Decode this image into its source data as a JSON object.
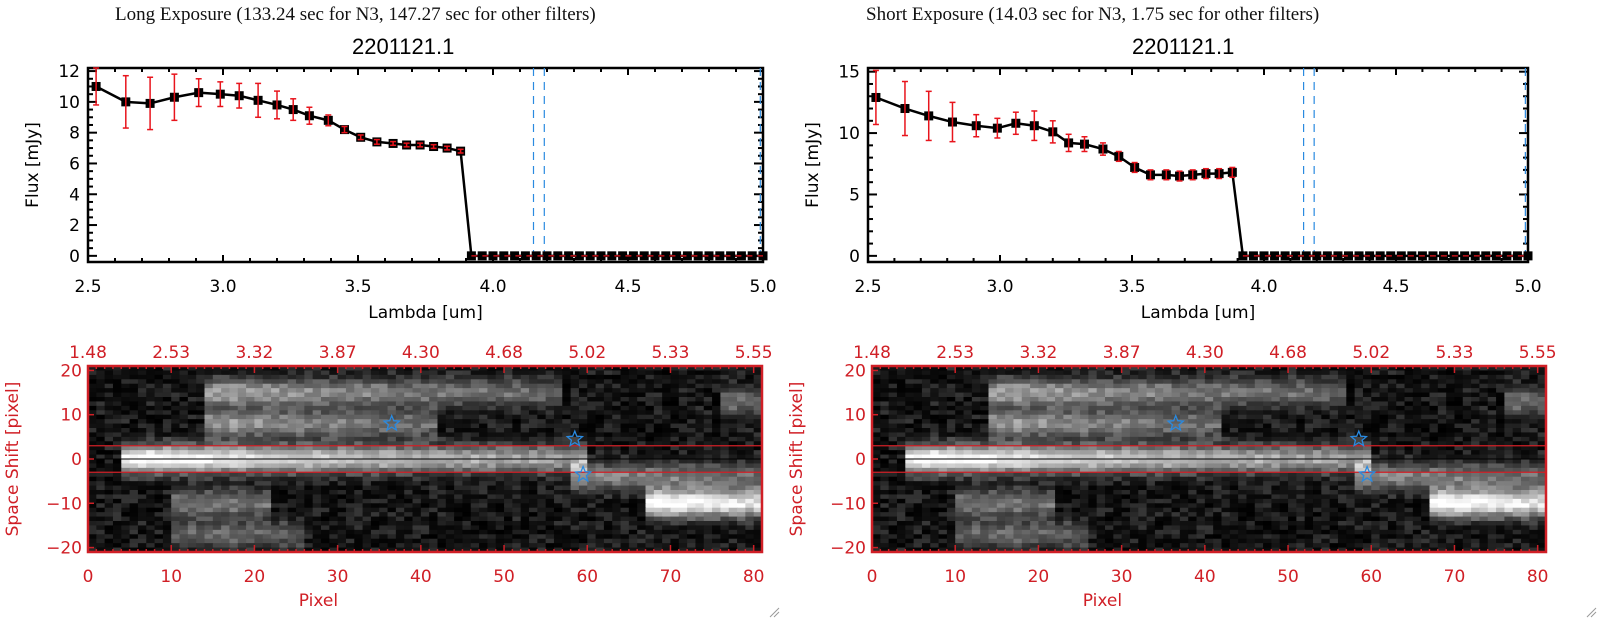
{
  "panels": [
    {
      "exposure_title": "Long Exposure (133.24 sec for N3, 147.27 sec for other filters)",
      "plot_title": "2201121.1"
    },
    {
      "exposure_title": "Short Exposure (14.03 sec for N3, 1.75 sec for other filters)",
      "plot_title": "2201121.1"
    }
  ],
  "colors": {
    "line": "#000000",
    "errorbar": "#e8141c",
    "image_axis": "#d01f26",
    "filter_line": "#2a8ae0",
    "star": "#2a8ae0",
    "zero_line": "#e8141c"
  },
  "chart_data": [
    {
      "type": "line",
      "title": "2201121.1",
      "xlabel": "Lambda [um]",
      "ylabel": "Flux [mJy]",
      "xlim": [
        2.5,
        5.0
      ],
      "ylim": [
        -0.4,
        12.2
      ],
      "xticks": [
        "2.5",
        "3.0",
        "3.5",
        "4.0",
        "4.5",
        "5.0"
      ],
      "yticks": [
        "0",
        "2",
        "4",
        "6",
        "8",
        "10",
        "12"
      ],
      "ytick_values": [
        0,
        2,
        4,
        6,
        8,
        10,
        12
      ],
      "series": [
        {
          "name": "flux",
          "x": [
            2.53,
            2.64,
            2.73,
            2.82,
            2.91,
            2.99,
            3.06,
            3.13,
            3.2,
            3.26,
            3.32,
            3.39,
            3.45,
            3.51,
            3.57,
            3.63,
            3.68,
            3.73,
            3.78,
            3.83,
            3.88,
            3.92,
            3.96,
            4.0,
            4.04,
            4.08,
            4.12,
            4.16,
            4.2,
            4.24,
            4.28,
            4.32,
            4.36,
            4.4,
            4.44,
            4.48,
            4.52,
            4.56,
            4.6,
            4.64,
            4.68,
            4.72,
            4.76,
            4.8,
            4.84,
            4.88,
            4.92,
            4.96,
            5.0
          ],
          "y": [
            11.0,
            10.0,
            9.9,
            10.3,
            10.6,
            10.5,
            10.4,
            10.1,
            9.8,
            9.5,
            9.1,
            8.8,
            8.2,
            7.7,
            7.4,
            7.3,
            7.2,
            7.2,
            7.1,
            7.0,
            6.8,
            0,
            0,
            0,
            0,
            0,
            0,
            0,
            0,
            0,
            0,
            0,
            0,
            0,
            0,
            0,
            0,
            0,
            0,
            0,
            0,
            0,
            0,
            0,
            0,
            0,
            0,
            0,
            0
          ],
          "yerr": [
            1.2,
            1.7,
            1.7,
            1.5,
            0.9,
            0.8,
            0.8,
            1.1,
            0.9,
            0.7,
            0.55,
            0.35,
            0.2,
            0.15,
            0.15,
            0.12,
            0.12,
            0.12,
            0.12,
            0.12,
            0.12,
            0,
            0,
            0,
            0,
            0,
            0,
            0,
            0,
            0,
            0,
            0,
            0,
            0,
            0,
            0,
            0,
            0,
            0,
            0,
            0,
            0,
            0,
            0,
            0,
            0,
            0,
            0,
            0
          ]
        }
      ],
      "vlines_dashed": [
        4.15,
        4.19,
        4.99
      ],
      "hline_dashed": 0
    },
    {
      "type": "line",
      "title": "2201121.1",
      "xlabel": "Lambda [um]",
      "ylabel": "Flux [mJy]",
      "xlim": [
        2.5,
        5.0
      ],
      "ylim": [
        -0.5,
        15.3
      ],
      "xticks": [
        "2.5",
        "3.0",
        "3.5",
        "4.0",
        "4.5",
        "5.0"
      ],
      "yticks": [
        "0",
        "5",
        "10",
        "15"
      ],
      "ytick_values": [
        0,
        5,
        10,
        15
      ],
      "series": [
        {
          "name": "flux",
          "x": [
            2.53,
            2.64,
            2.73,
            2.82,
            2.91,
            2.99,
            3.06,
            3.13,
            3.2,
            3.26,
            3.32,
            3.39,
            3.45,
            3.51,
            3.57,
            3.63,
            3.68,
            3.73,
            3.78,
            3.83,
            3.88,
            3.92,
            3.96,
            4.0,
            4.04,
            4.08,
            4.12,
            4.16,
            4.2,
            4.24,
            4.28,
            4.32,
            4.36,
            4.4,
            4.44,
            4.48,
            4.52,
            4.56,
            4.6,
            4.64,
            4.68,
            4.72,
            4.76,
            4.8,
            4.84,
            4.88,
            4.92,
            4.96,
            5.0
          ],
          "y": [
            12.9,
            12.0,
            11.4,
            10.9,
            10.6,
            10.4,
            10.8,
            10.6,
            10.1,
            9.2,
            9.1,
            8.7,
            8.1,
            7.2,
            6.6,
            6.6,
            6.5,
            6.6,
            6.7,
            6.7,
            6.8,
            0,
            0,
            0,
            0,
            0,
            0,
            0,
            0,
            0,
            0,
            0,
            0,
            0,
            0,
            0,
            0,
            0,
            0,
            0,
            0,
            0,
            0,
            0,
            0,
            0,
            0,
            0,
            0
          ],
          "yerr": [
            2.2,
            2.2,
            2.0,
            1.6,
            0.9,
            0.8,
            0.9,
            1.2,
            0.9,
            0.7,
            0.6,
            0.5,
            0.4,
            0.4,
            0.4,
            0.4,
            0.4,
            0.4,
            0.4,
            0.4,
            0.4,
            0,
            0,
            0,
            0,
            0,
            0,
            0,
            0,
            0,
            0,
            0,
            0,
            0,
            0,
            0,
            0,
            0,
            0,
            0,
            0,
            0,
            0,
            0,
            0,
            0,
            0,
            0,
            0
          ]
        }
      ],
      "vlines_dashed": [
        4.15,
        4.19,
        4.99
      ],
      "hline_dashed": 0
    },
    {
      "type": "heatmap",
      "xlabel": "Pixel",
      "ylabel": "Space Shift [pixel]",
      "xlim": [
        0,
        81
      ],
      "ylim": [
        -21,
        21
      ],
      "xticks": [
        "0",
        "10",
        "20",
        "30",
        "40",
        "50",
        "60",
        "70",
        "80"
      ],
      "xtick_values": [
        0,
        10,
        20,
        30,
        40,
        50,
        60,
        70,
        80
      ],
      "yticks": [
        "20",
        "10",
        "0",
        "-10",
        "-20"
      ],
      "ytick_values": [
        20,
        10,
        0,
        -10,
        -20
      ],
      "top_xticks": [
        "1.48",
        "2.53",
        "3.32",
        "3.87",
        "4.30",
        "4.68",
        "5.02",
        "5.33",
        "5.55"
      ],
      "aperture_lines": [
        3,
        -3
      ],
      "center_line": 0,
      "stars": [
        [
          36.5,
          8
        ],
        [
          58.5,
          4.5
        ],
        [
          59.5,
          -3.5
        ]
      ],
      "sources": [
        {
          "x0": 4,
          "x1": 60,
          "y": 0,
          "peak": 1.0,
          "peak_x": 8
        },
        {
          "x0": 14,
          "x1": 57,
          "y": 15,
          "peak": 0.55,
          "peak_x": 17
        },
        {
          "x0": 14,
          "x1": 42,
          "y": 8,
          "peak": 0.5,
          "peak_x": 17
        },
        {
          "x0": 58,
          "x1": 81,
          "y": -4,
          "peak": 0.45,
          "peak_x": 60
        },
        {
          "x0": 67,
          "x1": 81,
          "y": -10,
          "peak": 0.95,
          "peak_x": 70
        },
        {
          "x0": 10,
          "x1": 22,
          "y": -10,
          "peak": 0.4,
          "peak_x": 16
        },
        {
          "x0": 10,
          "x1": 26,
          "y": -17,
          "peak": 0.32,
          "peak_x": 15
        },
        {
          "x0": 76,
          "x1": 81,
          "y": 13,
          "peak": 0.35,
          "peak_x": 78
        }
      ]
    }
  ]
}
